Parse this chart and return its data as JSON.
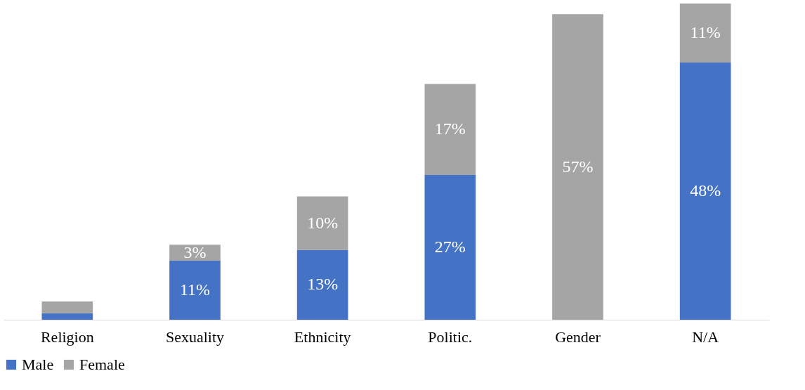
{
  "chart_data": {
    "type": "bar",
    "stacked": true,
    "legend": "bottom",
    "categories": [
      "Religion",
      "Sexuality",
      "Ethnicity",
      "Politic.",
      "Gender",
      "N/A"
    ],
    "series": [
      {
        "name": "Male",
        "color": "#4472c4",
        "values": [
          1.2,
          11,
          13,
          27,
          0,
          48
        ],
        "value_labels": [
          null,
          "11%",
          "13%",
          "27%",
          null,
          "48%"
        ]
      },
      {
        "name": "Female",
        "color": "#a5a5a5",
        "values": [
          2.2,
          3,
          10,
          17,
          57,
          11
        ],
        "value_labels": [
          null,
          "3%",
          "10%",
          "17%",
          "57%",
          "11%"
        ]
      }
    ]
  }
}
